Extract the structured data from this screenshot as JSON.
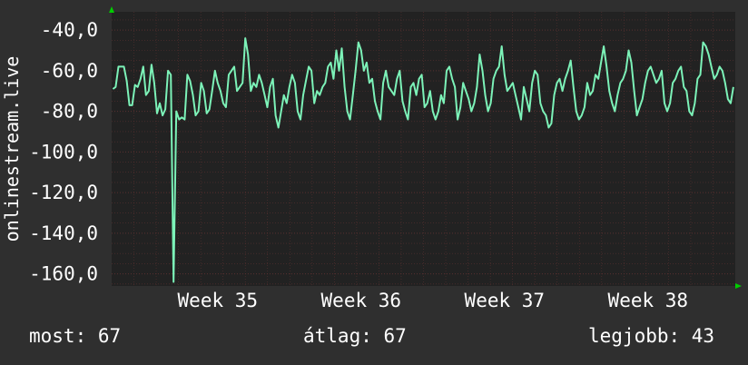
{
  "chart_data": {
    "type": "line",
    "ylabel": "onlinestream.live",
    "title": "",
    "xlabel": "",
    "ylim": [
      -166,
      -31
    ],
    "yticks": [
      -40,
      -60,
      -80,
      -100,
      -120,
      -140,
      -160
    ],
    "ytick_labels": [
      "-40,0",
      "-60,0",
      "-80,0",
      "-100,0",
      "-120,0",
      "-140,0",
      "-160,0"
    ],
    "xlim": [
      0,
      1
    ],
    "xticks": [
      {
        "label": "Week 35",
        "pos": 0.17
      },
      {
        "label": "Week 36",
        "pos": 0.4
      },
      {
        "label": "Week 37",
        "pos": 0.63
      },
      {
        "label": "Week 38",
        "pos": 0.86
      }
    ],
    "series": [
      {
        "color": "#7cf2b8",
        "values": [
          -69,
          -68,
          -58,
          -58,
          -58,
          -65,
          -77,
          -77,
          -67,
          -68,
          -64,
          -58,
          -72,
          -70,
          -57,
          -66,
          -81,
          -76,
          -82,
          -79,
          -60,
          -62,
          -164,
          -80,
          -84,
          -83,
          -84,
          -62,
          -65,
          -72,
          -82,
          -80,
          -66,
          -70,
          -81,
          -79,
          -70,
          -60,
          -66,
          -70,
          -76,
          -78,
          -62,
          -60,
          -58,
          -70,
          -68,
          -66,
          -44,
          -52,
          -70,
          -66,
          -68,
          -62,
          -66,
          -72,
          -78,
          -68,
          -64,
          -82,
          -88,
          -80,
          -72,
          -76,
          -68,
          -62,
          -66,
          -80,
          -84,
          -72,
          -65,
          -58,
          -60,
          -76,
          -70,
          -72,
          -68,
          -66,
          -58,
          -56,
          -64,
          -50,
          -60,
          -49,
          -68,
          -80,
          -84,
          -72,
          -60,
          -46,
          -50,
          -60,
          -56,
          -66,
          -64,
          -75,
          -80,
          -84,
          -66,
          -60,
          -68,
          -70,
          -72,
          -64,
          -60,
          -75,
          -80,
          -84,
          -68,
          -66,
          -72,
          -64,
          -62,
          -78,
          -76,
          -70,
          -80,
          -84,
          -80,
          -72,
          -76,
          -60,
          -58,
          -64,
          -68,
          -84,
          -78,
          -66,
          -70,
          -74,
          -80,
          -76,
          -68,
          -52,
          -60,
          -72,
          -80,
          -76,
          -64,
          -60,
          -58,
          -48,
          -62,
          -70,
          -68,
          -66,
          -72,
          -78,
          -84,
          -68,
          -74,
          -80,
          -66,
          -60,
          -62,
          -76,
          -80,
          -82,
          -88,
          -86,
          -72,
          -66,
          -64,
          -70,
          -64,
          -60,
          -55,
          -68,
          -80,
          -84,
          -82,
          -78,
          -66,
          -72,
          -70,
          -62,
          -64,
          -56,
          -48,
          -58,
          -70,
          -76,
          -80,
          -72,
          -66,
          -64,
          -60,
          -50,
          -56,
          -70,
          -82,
          -78,
          -74,
          -66,
          -60,
          -58,
          -62,
          -66,
          -64,
          -60,
          -76,
          -80,
          -76,
          -66,
          -64,
          -60,
          -58,
          -68,
          -70,
          -80,
          -82,
          -76,
          -64,
          -62,
          -46,
          -48,
          -52,
          -58,
          -64,
          -62,
          -58,
          -60,
          -66,
          -74,
          -76,
          -68
        ]
      }
    ],
    "grid": true
  },
  "footer": {
    "most": "most: 67",
    "atlag": "átlag: 67",
    "legjobb": "legjobb: 43"
  },
  "colors": {
    "background": "#2f2f2f",
    "plot_bg": "#222222",
    "grid": "#5a3030",
    "line": "#7cf2b8",
    "axis_arrow": "#00cc00"
  }
}
